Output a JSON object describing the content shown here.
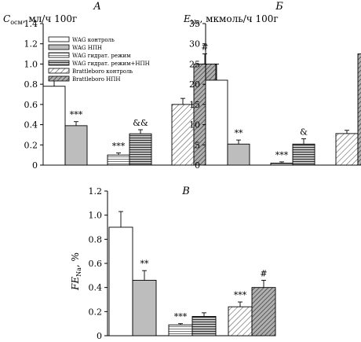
{
  "chart_data": [
    {
      "type": "bar",
      "panel_label": "А",
      "ylabel": "Cосм, мл/ч 100г",
      "ylabel_main": "C",
      "ylabel_sub": "осм",
      "ylabel_rest": ", мл/ч 100г",
      "ylim": [
        0,
        1.4
      ],
      "yticks": [
        "0",
        "0.2",
        "0.4",
        "0.6",
        "0.8",
        "1.0",
        "1.2",
        "1.4"
      ],
      "categories": [
        "WAG контроль",
        "WAG НПН",
        "WAG гидрат. режим",
        "WAG гидрат. режим+НПН",
        "Brattleboro контроль",
        "Brattleboro НПН"
      ],
      "values": [
        0.78,
        0.39,
        0.1,
        0.31,
        0.6,
        1.0
      ],
      "errors": [
        0.08,
        0.04,
        0.02,
        0.04,
        0.06,
        0.1
      ],
      "annotations": [
        "",
        "***",
        "***",
        "&&",
        "",
        "#"
      ],
      "legend": {
        "position": "top-right",
        "entries": [
          "WAG контроль",
          "WAG НПН",
          "WAG гидрат. режим",
          "WAG гидрат. режим+НПН",
          "Brattleboro контроль",
          "Brattleboro НПН"
        ]
      }
    },
    {
      "type": "bar",
      "panel_label": "Б",
      "ylabel": "ENa, мкмоль/ч 100г",
      "ylabel_main": "E",
      "ylabel_sub": "Na",
      "ylabel_rest": ", мкмоль/ч 100г",
      "ylim": [
        0,
        35
      ],
      "yticks": [
        "0",
        "5",
        "10",
        "15",
        "20",
        "25",
        "30",
        "35"
      ],
      "categories": [
        "WAG контроль",
        "WAG НПН",
        "WAG гидрат. режим",
        "WAG гидрат. режим+НПН",
        "Brattleboro контроль",
        "Brattleboro НПН"
      ],
      "values": [
        21.0,
        5.2,
        0.5,
        5.2,
        7.8,
        27.5
      ],
      "errors": [
        4.0,
        1.0,
        0.3,
        1.3,
        0.8,
        4.6
      ],
      "annotations": [
        "",
        "**",
        "***",
        "&",
        "",
        "##"
      ]
    },
    {
      "type": "bar",
      "panel_label": "В",
      "ylabel": "FENa, %",
      "ylabel_main": "FE",
      "ylabel_sub": "Na",
      "ylabel_rest": ", %",
      "ylim": [
        0,
        1.2
      ],
      "yticks": [
        "0",
        "0.2",
        "0.4",
        "0.6",
        "0.8",
        "1.0",
        "1.2"
      ],
      "categories": [
        "WAG контроль",
        "WAG НПН",
        "WAG гидрат. режим",
        "WAG гидрат. режим+НПН",
        "Brattleboro контроль",
        "Brattleboro НПН"
      ],
      "values": [
        0.9,
        0.46,
        0.09,
        0.16,
        0.24,
        0.4
      ],
      "errors": [
        0.13,
        0.08,
        0.01,
        0.03,
        0.04,
        0.06
      ],
      "annotations": [
        "",
        "**",
        "***",
        "",
        "***",
        "#"
      ]
    }
  ],
  "bar_styles": [
    {
      "fill": "#ffffff",
      "pattern": "none"
    },
    {
      "fill": "#bdbdbd",
      "pattern": "none"
    },
    {
      "fill": "#ffffff",
      "pattern": "hlines-light"
    },
    {
      "fill": "#9a9a9a",
      "pattern": "hlines-dark"
    },
    {
      "fill": "#ffffff",
      "pattern": "diag-light"
    },
    {
      "fill": "#9a9a9a",
      "pattern": "diag-dark"
    }
  ]
}
